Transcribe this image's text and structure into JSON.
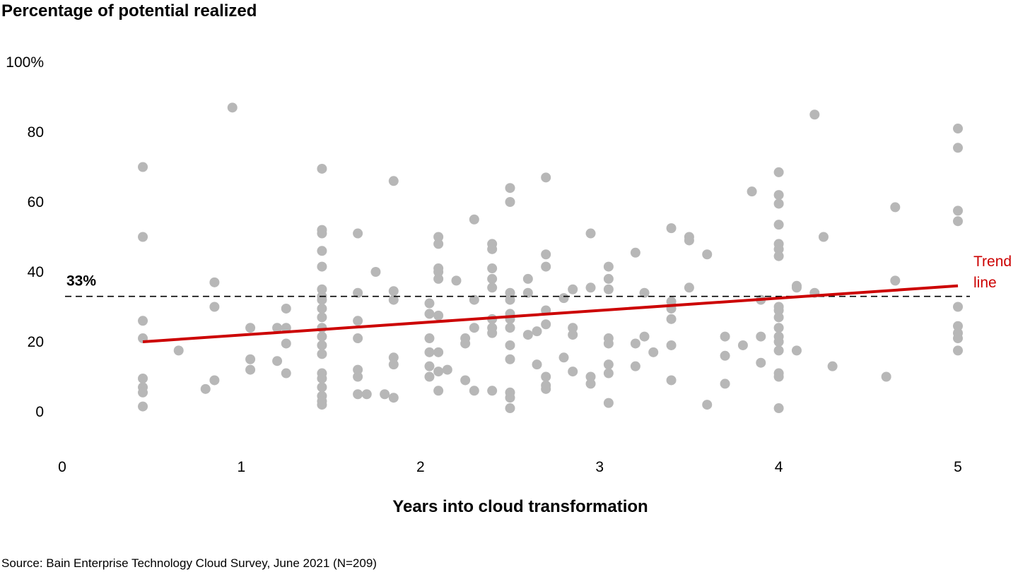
{
  "chart_data": {
    "type": "scatter",
    "title": "",
    "ylabel": "Percentage of potential realized",
    "xlabel": "Years into cloud transformation",
    "source": "Source: Bain Enterprise Technology Cloud Survey, June 2021 (N=209)",
    "xlim": [
      0,
      5
    ],
    "ylim": [
      0,
      100
    ],
    "x_ticks": [
      0,
      1,
      2,
      3,
      4,
      5
    ],
    "x_tick_labels": [
      "0",
      "1",
      "2",
      "3",
      "4",
      "5"
    ],
    "y_ticks": [
      0,
      20,
      40,
      60,
      80,
      100
    ],
    "y_tick_labels": [
      "0",
      "20",
      "40",
      "60",
      "80",
      "100%"
    ],
    "grid": false,
    "colors": {
      "points": "#b7b7b7",
      "trend": "#cc0000",
      "reference": "#000000"
    },
    "reference_line": {
      "y": 33,
      "label": "33%",
      "style": "dashed"
    },
    "trend_line": {
      "label_line1": "Trend",
      "label_line2": "line",
      "x": [
        0.45,
        5
      ],
      "y": [
        20,
        36
      ]
    },
    "points": [
      [
        0.45,
        70
      ],
      [
        0.45,
        50
      ],
      [
        0.45,
        26
      ],
      [
        0.45,
        21
      ],
      [
        0.45,
        9.5
      ],
      [
        0.45,
        7
      ],
      [
        0.45,
        5.5
      ],
      [
        0.45,
        1.5
      ],
      [
        0.65,
        17.5
      ],
      [
        0.8,
        6.5
      ],
      [
        0.85,
        37
      ],
      [
        0.85,
        30
      ],
      [
        0.85,
        9
      ],
      [
        0.95,
        87
      ],
      [
        1.05,
        24
      ],
      [
        1.05,
        15
      ],
      [
        1.05,
        12
      ],
      [
        1.2,
        24
      ],
      [
        1.2,
        14.5
      ],
      [
        1.25,
        24
      ],
      [
        1.25,
        29.5
      ],
      [
        1.25,
        19.5
      ],
      [
        1.25,
        11
      ],
      [
        1.45,
        69.5
      ],
      [
        1.45,
        52
      ],
      [
        1.45,
        51
      ],
      [
        1.45,
        46
      ],
      [
        1.45,
        41.5
      ],
      [
        1.45,
        35
      ],
      [
        1.45,
        33
      ],
      [
        1.45,
        32
      ],
      [
        1.45,
        29.5
      ],
      [
        1.45,
        27
      ],
      [
        1.45,
        24
      ],
      [
        1.45,
        21.5
      ],
      [
        1.45,
        19
      ],
      [
        1.45,
        16.5
      ],
      [
        1.45,
        11
      ],
      [
        1.45,
        9.5
      ],
      [
        1.45,
        7
      ],
      [
        1.45,
        4.5
      ],
      [
        1.45,
        3
      ],
      [
        1.45,
        2
      ],
      [
        1.65,
        51
      ],
      [
        1.65,
        34
      ],
      [
        1.65,
        26
      ],
      [
        1.65,
        21
      ],
      [
        1.65,
        12
      ],
      [
        1.65,
        10
      ],
      [
        1.65,
        5
      ],
      [
        1.7,
        5
      ],
      [
        1.75,
        40
      ],
      [
        1.8,
        5
      ],
      [
        1.85,
        66
      ],
      [
        1.85,
        34.5
      ],
      [
        1.85,
        32
      ],
      [
        1.85,
        15.5
      ],
      [
        1.85,
        13.5
      ],
      [
        1.85,
        4
      ],
      [
        2.05,
        31
      ],
      [
        2.05,
        28
      ],
      [
        2.05,
        21
      ],
      [
        2.05,
        17
      ],
      [
        2.05,
        13
      ],
      [
        2.05,
        10
      ],
      [
        2.1,
        50
      ],
      [
        2.1,
        48
      ],
      [
        2.1,
        41
      ],
      [
        2.1,
        40
      ],
      [
        2.1,
        38
      ],
      [
        2.1,
        27.5
      ],
      [
        2.1,
        17
      ],
      [
        2.1,
        11.5
      ],
      [
        2.1,
        6
      ],
      [
        2.15,
        12
      ],
      [
        2.2,
        37.5
      ],
      [
        2.25,
        21
      ],
      [
        2.25,
        19.5
      ],
      [
        2.25,
        9
      ],
      [
        2.3,
        55
      ],
      [
        2.3,
        32
      ],
      [
        2.3,
        24
      ],
      [
        2.3,
        6
      ],
      [
        2.4,
        48
      ],
      [
        2.4,
        46.5
      ],
      [
        2.4,
        41
      ],
      [
        2.4,
        38
      ],
      [
        2.4,
        35.5
      ],
      [
        2.4,
        26.5
      ],
      [
        2.4,
        24
      ],
      [
        2.4,
        22.5
      ],
      [
        2.4,
        6
      ],
      [
        2.5,
        64
      ],
      [
        2.5,
        60
      ],
      [
        2.5,
        34
      ],
      [
        2.5,
        32
      ],
      [
        2.5,
        28
      ],
      [
        2.5,
        26.5
      ],
      [
        2.5,
        24
      ],
      [
        2.5,
        19
      ],
      [
        2.5,
        15
      ],
      [
        2.5,
        5.5
      ],
      [
        2.5,
        4
      ],
      [
        2.5,
        1
      ],
      [
        2.6,
        38
      ],
      [
        2.6,
        34
      ],
      [
        2.6,
        22
      ],
      [
        2.65,
        23
      ],
      [
        2.65,
        13.5
      ],
      [
        2.7,
        67
      ],
      [
        2.7,
        45
      ],
      [
        2.7,
        41.5
      ],
      [
        2.7,
        29
      ],
      [
        2.7,
        25
      ],
      [
        2.7,
        10
      ],
      [
        2.7,
        7.5
      ],
      [
        2.7,
        6.5
      ],
      [
        2.8,
        32.5
      ],
      [
        2.8,
        15.5
      ],
      [
        2.85,
        35
      ],
      [
        2.85,
        24
      ],
      [
        2.85,
        22
      ],
      [
        2.85,
        11.5
      ],
      [
        2.95,
        51
      ],
      [
        2.95,
        35.5
      ],
      [
        2.95,
        10
      ],
      [
        2.95,
        8
      ],
      [
        3.05,
        41.5
      ],
      [
        3.05,
        38
      ],
      [
        3.05,
        35
      ],
      [
        3.05,
        21
      ],
      [
        3.05,
        19.5
      ],
      [
        3.05,
        13.5
      ],
      [
        3.05,
        11
      ],
      [
        3.05,
        2.5
      ],
      [
        3.2,
        45.5
      ],
      [
        3.2,
        19.5
      ],
      [
        3.2,
        13
      ],
      [
        3.25,
        34
      ],
      [
        3.25,
        21.5
      ],
      [
        3.3,
        17
      ],
      [
        3.4,
        52.5
      ],
      [
        3.4,
        31.5
      ],
      [
        3.4,
        29.5
      ],
      [
        3.4,
        26.5
      ],
      [
        3.4,
        19
      ],
      [
        3.4,
        9
      ],
      [
        3.5,
        50
      ],
      [
        3.5,
        49
      ],
      [
        3.5,
        35.5
      ],
      [
        3.6,
        45
      ],
      [
        3.6,
        2
      ],
      [
        3.7,
        21.5
      ],
      [
        3.7,
        16
      ],
      [
        3.7,
        8
      ],
      [
        3.8,
        19
      ],
      [
        3.85,
        63
      ],
      [
        3.9,
        32
      ],
      [
        3.9,
        21.5
      ],
      [
        3.9,
        14
      ],
      [
        4.0,
        68.5
      ],
      [
        4.0,
        62
      ],
      [
        4.0,
        59.5
      ],
      [
        4.0,
        53.5
      ],
      [
        4.0,
        48
      ],
      [
        4.0,
        46.5
      ],
      [
        4.0,
        44.5
      ],
      [
        4.0,
        30
      ],
      [
        4.0,
        29
      ],
      [
        4.0,
        27
      ],
      [
        4.0,
        24
      ],
      [
        4.0,
        21.5
      ],
      [
        4.0,
        20
      ],
      [
        4.0,
        17.5
      ],
      [
        4.0,
        11
      ],
      [
        4.0,
        10
      ],
      [
        4.0,
        1
      ],
      [
        4.1,
        36
      ],
      [
        4.1,
        35.5
      ],
      [
        4.1,
        17.5
      ],
      [
        4.2,
        85
      ],
      [
        4.2,
        34
      ],
      [
        4.25,
        50
      ],
      [
        4.3,
        13
      ],
      [
        4.6,
        10
      ],
      [
        4.65,
        58.5
      ],
      [
        4.65,
        37.5
      ],
      [
        5.0,
        81
      ],
      [
        5.0,
        75.5
      ],
      [
        5.0,
        57.5
      ],
      [
        5.0,
        54.5
      ],
      [
        5.0,
        30
      ],
      [
        5.0,
        24.5
      ],
      [
        5.0,
        22.5
      ],
      [
        5.0,
        21
      ],
      [
        5.0,
        17.5
      ]
    ]
  }
}
